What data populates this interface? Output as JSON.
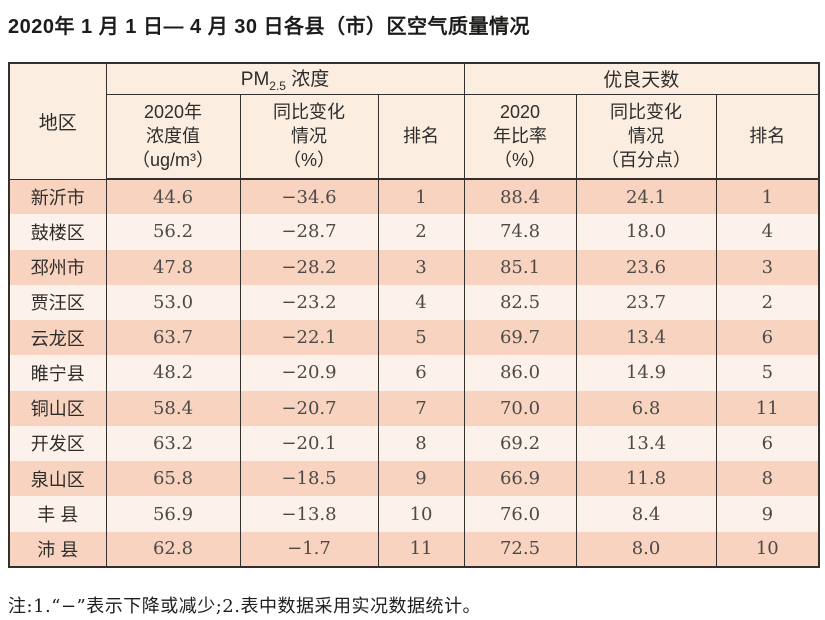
{
  "page": {
    "title": "2020年 1 月 1 日— 4 月 30 日各县（市）区空气质量情况"
  },
  "colors": {
    "row_salmon": "#f8d3c0",
    "row_light": "#fdf1ec",
    "header_bg": "#fbeee1",
    "border": "#33302d"
  },
  "table": {
    "header": {
      "region": "地区",
      "pm_group_prefix": "PM",
      "pm_group_sub": "2.5",
      "pm_group_suffix": " 浓度",
      "good_group": "优良天数",
      "sub_headers": [
        {
          "lines": [
            "2020年",
            "浓度值",
            "（ug/m³）"
          ]
        },
        {
          "lines": [
            "同比变化",
            "情况",
            "（%）"
          ]
        },
        {
          "lines": [
            "排名"
          ]
        },
        {
          "lines": [
            "2020",
            "年比率",
            "（%）"
          ]
        },
        {
          "lines": [
            "同比变化",
            "情况",
            "（百分点）"
          ]
        },
        {
          "lines": [
            "排名"
          ]
        }
      ]
    },
    "rows": [
      {
        "region": "新沂市",
        "pm_value": "44.6",
        "pm_change": "−34.6",
        "pm_rank": "1",
        "good_ratio": "88.4",
        "good_change": "24.1",
        "good_rank": "1"
      },
      {
        "region": "鼓楼区",
        "pm_value": "56.2",
        "pm_change": "−28.7",
        "pm_rank": "2",
        "good_ratio": "74.8",
        "good_change": "18.0",
        "good_rank": "4"
      },
      {
        "region": "邳州市",
        "pm_value": "47.8",
        "pm_change": "−28.2",
        "pm_rank": "3",
        "good_ratio": "85.1",
        "good_change": "23.6",
        "good_rank": "3"
      },
      {
        "region": "贾汪区",
        "pm_value": "53.0",
        "pm_change": "−23.2",
        "pm_rank": "4",
        "good_ratio": "82.5",
        "good_change": "23.7",
        "good_rank": "2"
      },
      {
        "region": "云龙区",
        "pm_value": "63.7",
        "pm_change": "−22.1",
        "pm_rank": "5",
        "good_ratio": "69.7",
        "good_change": "13.4",
        "good_rank": "6"
      },
      {
        "region": "睢宁县",
        "pm_value": "48.2",
        "pm_change": "−20.9",
        "pm_rank": "6",
        "good_ratio": "86.0",
        "good_change": "14.9",
        "good_rank": "5"
      },
      {
        "region": "铜山区",
        "pm_value": "58.4",
        "pm_change": "−20.7",
        "pm_rank": "7",
        "good_ratio": "70.0",
        "good_change": "6.8",
        "good_rank": "11"
      },
      {
        "region": "开发区",
        "pm_value": "63.2",
        "pm_change": "−20.1",
        "pm_rank": "8",
        "good_ratio": "69.2",
        "good_change": "13.4",
        "good_rank": "6"
      },
      {
        "region": "泉山区",
        "pm_value": "65.8",
        "pm_change": "−18.5",
        "pm_rank": "9",
        "good_ratio": "66.9",
        "good_change": "11.8",
        "good_rank": "8"
      },
      {
        "region": "丰 县",
        "pm_value": "56.9",
        "pm_change": "−13.8",
        "pm_rank": "10",
        "good_ratio": "76.0",
        "good_change": "8.4",
        "good_rank": "9"
      },
      {
        "region": "沛 县",
        "pm_value": "62.8",
        "pm_change": "−1.7",
        "pm_rank": "11",
        "good_ratio": "72.5",
        "good_change": "8.0",
        "good_rank": "10"
      }
    ]
  },
  "note": "注:1.“−”表示下降或减少;2.表中数据采用实况数据统计。"
}
